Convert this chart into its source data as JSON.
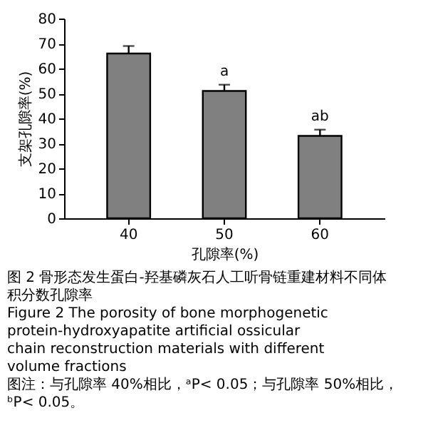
{
  "chart_data": {
    "type": "bar",
    "categories": [
      "40",
      "50",
      "60"
    ],
    "values": [
      66,
      51,
      33
    ],
    "errors": [
      3,
      2.5,
      2.5
    ],
    "color": "#808080",
    "xlabel": "孔隙率(%)",
    "ylabel": "支架孔隙率(%)",
    "ylim": [
      0,
      80
    ],
    "yticks": [
      0,
      10,
      20,
      30,
      40,
      50,
      60,
      70,
      80
    ],
    "grid": false,
    "legend": false,
    "annotations": [
      {
        "text": "a",
        "x": "50",
        "y": 56
      },
      {
        "text": "ab",
        "x": "60",
        "y": 38
      },
      "图 2   骨形态发生蛋白-羟基磷灰石人工听骨链重建材料不同体积分数孔隙率",
      "Figure 2   The porosity of bone morphogenetic protein-hydroxyapatite artificial ossicular chain reconstruction materials with different volume fractions",
      "图注：与孔隙率 40%相比，ᵃP< 0.05；与孔隙率 50%相比，ᵇP< 0.05。"
    ]
  }
}
